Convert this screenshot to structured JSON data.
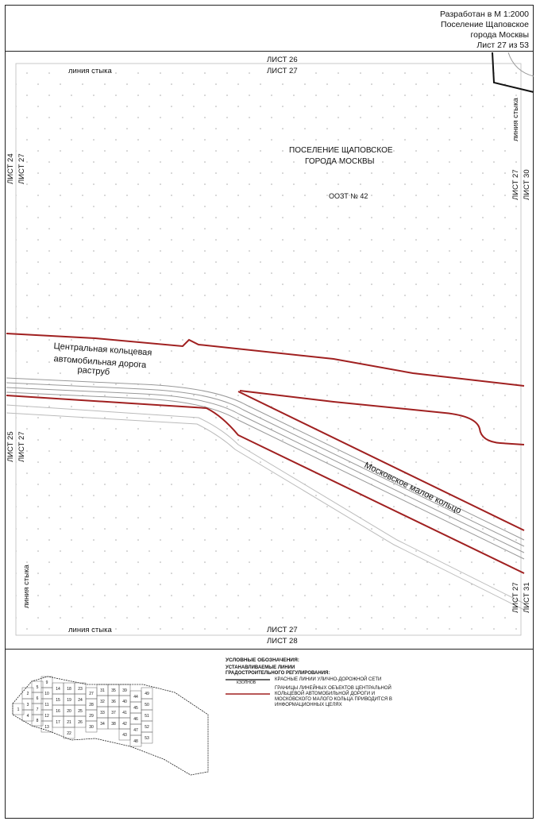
{
  "header": {
    "scale": "Разработан в М 1:2000",
    "line2": "Поселение Щаповское",
    "line3": "города Москвы",
    "sheet": "Лист 27 из 53"
  },
  "map": {
    "top_sheet_outer": "ЛИСТ 26",
    "top_sheet_inner": "ЛИСТ 27",
    "bottom_sheet_inner": "ЛИСТ 27",
    "bottom_sheet_outer": "ЛИСТ 28",
    "junction_line": "линия стыка",
    "left_upper_outer": "ЛИСТ 24",
    "left_upper_inner": "ЛИСТ 27",
    "left_lower_outer": "ЛИСТ 25",
    "left_lower_inner": "ЛИСТ 27",
    "right_upper_inner": "ЛИСТ 27",
    "right_upper_outer": "ЛИСТ 30",
    "right_lower_inner": "ЛИСТ 27",
    "right_lower_outer": "ЛИСТ 31",
    "settlement_line1": "ПОСЕЛЕНИЕ ЩАПОВСКОЕ",
    "settlement_line2": "ГОРОДА МОСКВЫ",
    "zone": "ООЗТ № 42",
    "road_line1": "Центральная кольцевая",
    "road_line2": "автомобильная дорога",
    "road_line3": "раструб",
    "ring_road": "Московское малое кольцо"
  },
  "legend": {
    "title": "УСЛОВНЫЕ ОБОЗНАЧЕНИЯ:",
    "subtitle1": "УСТАНАВЛИВАЕМЫЕ ЛИНИИ",
    "subtitle2": "ГРАДОСТРОИТЕЛЬНОГО РЕГУЛИРОВАНИЯ:",
    "item1_tag": "КЗОПНОВ",
    "item1_text": "КРАСНЫЕ ЛИНИИ УЛИЧНО-ДОРОЖНОЙ СЕТИ",
    "item2_line1": "ГРАНИЦЫ ЛИНЕЙНЫХ ОБЪЕКТОВ ЦЕНТРАЛЬНОЙ",
    "item2_line2": "КОЛЬЦЕВОЙ АВТОМОБИЛЬНОЙ ДОРОГИ И",
    "item2_line3": "МОСКОВСКОГО МАЛОГО КОЛЬЦА ПРИВОДИТСЯ В",
    "item2_line4": "ИНФОРМАЦИОННЫХ ЦЕЛЯХ",
    "colors": {
      "red_line": "#a02020",
      "road": "#999999"
    }
  },
  "index_map": {
    "sheets": [
      "1",
      "2",
      "3",
      "4",
      "5",
      "6",
      "7",
      "8",
      "9",
      "10",
      "11",
      "12",
      "13",
      "14",
      "15",
      "16",
      "17",
      "18",
      "19",
      "20",
      "21",
      "22",
      "23",
      "24",
      "25",
      "26",
      "27",
      "28",
      "29",
      "30",
      "31",
      "32",
      "33",
      "34",
      "35",
      "36",
      "37",
      "38",
      "39",
      "40",
      "41",
      "42",
      "43",
      "44",
      "45",
      "46",
      "47",
      "48",
      "49",
      "50",
      "51",
      "52",
      "53"
    ]
  }
}
